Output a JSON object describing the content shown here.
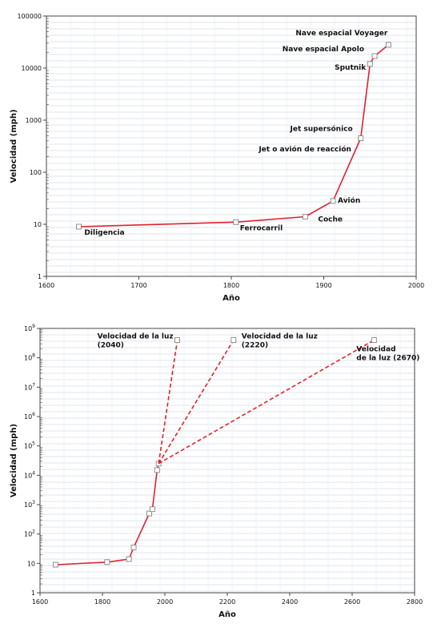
{
  "colors": {
    "line": "#e4202e",
    "grid": "#dfe6ee",
    "axis": "#444444",
    "paper": "#ffffff"
  },
  "chart_data": [
    {
      "type": "line",
      "scale": "log-y",
      "xlabel": "Año",
      "ylabel": "Velocidad (mph)",
      "xlim": [
        1600,
        2000
      ],
      "ylim": [
        1,
        100000
      ],
      "grid": true,
      "x_ticks": [
        "1600",
        "1700",
        "1800",
        "1900",
        "2000"
      ],
      "y_ticks": [
        "1",
        "10",
        "100",
        "1000",
        "10000",
        "100000"
      ],
      "series": [
        {
          "x": [
            1635,
            1805,
            1880,
            1910,
            1940,
            1950,
            1955,
            1970
          ],
          "y": [
            9,
            11,
            14,
            28,
            450,
            12000,
            17000,
            28000
          ]
        }
      ],
      "annotations": [
        {
          "text": "Diligencia",
          "x": 1635,
          "y": 9
        },
        {
          "text": "Ferrocarril",
          "x": 1805,
          "y": 11
        },
        {
          "text": "Coche",
          "x": 1880,
          "y": 14
        },
        {
          "text": "Avión",
          "x": 1910,
          "y": 28
        },
        {
          "text": "Jet o avión de reacción",
          "x": 1935,
          "y": 280
        },
        {
          "text": "Jet supersónico",
          "x": 1940,
          "y": 450
        },
        {
          "text": "Sputnik",
          "x": 1950,
          "y": 12000
        },
        {
          "text": "Nave espacial Apolo",
          "x": 1955,
          "y": 17000
        },
        {
          "text": "Nave espacial Voyager",
          "x": 1970,
          "y": 28000
        }
      ]
    },
    {
      "type": "line",
      "scale": "log-y",
      "xlabel": "Año",
      "ylabel": "Velocidad (mph)",
      "xlim": [
        1600,
        2800
      ],
      "ylim": [
        1,
        1000000000
      ],
      "grid": true,
      "x_ticks": [
        "1600",
        "1800",
        "2000",
        "2200",
        "2400",
        "2600",
        "2800"
      ],
      "y_ticks": [
        {
          "base": "1",
          "exp": ""
        },
        {
          "base": "10",
          "exp": ""
        },
        {
          "base": "10",
          "exp": "2"
        },
        {
          "base": "10",
          "exp": "3"
        },
        {
          "base": "10",
          "exp": "4"
        },
        {
          "base": "10",
          "exp": "5"
        },
        {
          "base": "10",
          "exp": "6"
        },
        {
          "base": "10",
          "exp": "7"
        },
        {
          "base": "10",
          "exp": "8"
        },
        {
          "base": "10",
          "exp": "9"
        }
      ],
      "series": [
        {
          "style": "solid",
          "x": [
            1650,
            1815,
            1885,
            1900,
            1950,
            1960,
            1975,
            1980
          ],
          "y": [
            9,
            11,
            14,
            35,
            500,
            700,
            15000,
            25000
          ]
        },
        {
          "style": "dashed",
          "x": [
            1980,
            2040
          ],
          "y": [
            25000,
            400000000
          ]
        },
        {
          "style": "dashed",
          "x": [
            1980,
            2220
          ],
          "y": [
            25000,
            400000000
          ]
        },
        {
          "style": "dashed",
          "x": [
            1980,
            2670
          ],
          "y": [
            25000,
            400000000
          ]
        }
      ],
      "annotations": [
        {
          "lines": [
            "Velocidad de la luz",
            "(2040)"
          ],
          "x": 2040,
          "y": 400000000
        },
        {
          "lines": [
            "Velocidad de la luz",
            "(2220)"
          ],
          "x": 2220,
          "y": 400000000
        },
        {
          "lines": [
            "Velocidad",
            "de la luz (2670)"
          ],
          "x": 2670,
          "y": 400000000
        }
      ]
    }
  ]
}
